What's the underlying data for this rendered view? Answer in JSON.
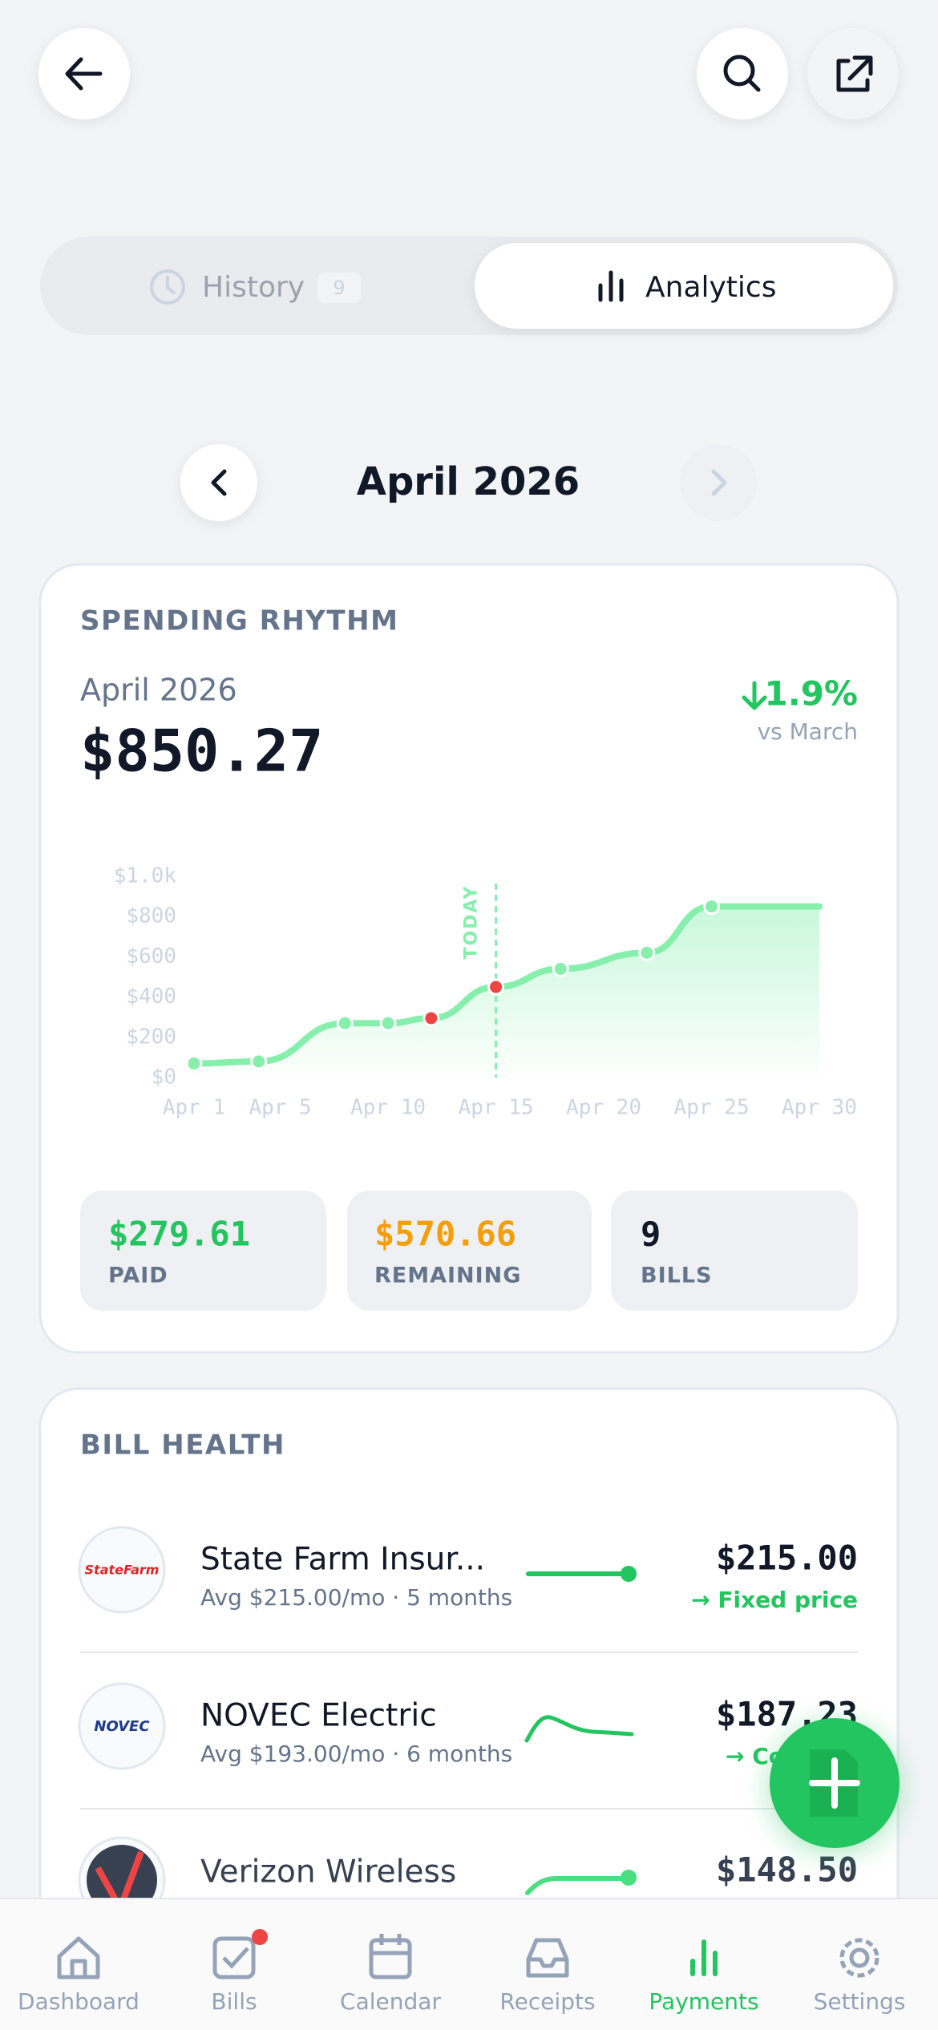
{
  "tabs": [
    {
      "label": "History",
      "badge": 9
    },
    {
      "label": "Analytics"
    }
  ],
  "month_nav": {
    "label": "April 2026"
  },
  "spending_card": {
    "title": "SPENDING RHYTHM",
    "period": "April 2026",
    "total": "$850.27",
    "change": "1.9%",
    "change_note": "vs March",
    "chart": {
      "type": "line",
      "color": "#86efac",
      "x": [
        1,
        4,
        8,
        10,
        12,
        15,
        18,
        22,
        25
      ],
      "values": [
        70,
        80,
        270,
        270,
        295,
        450,
        540,
        620,
        850
      ],
      "point_colors": [
        "#86efac",
        "#86efac",
        "#86efac",
        "#86efac",
        "#ef4444",
        "#ef4444",
        "#86efac",
        "#86efac",
        "#86efac"
      ],
      "xlim": [
        1,
        30
      ],
      "ylim": [
        0,
        1000
      ],
      "xticks": [
        {
          "value": 1,
          "label": "Apr 1"
        },
        {
          "value": 5,
          "label": "Apr 5"
        },
        {
          "value": 10,
          "label": "Apr 10"
        },
        {
          "value": 15,
          "label": "Apr 15"
        },
        {
          "value": 20,
          "label": "Apr 20"
        },
        {
          "value": 25,
          "label": "Apr 25"
        },
        {
          "value": 30,
          "label": "Apr 30"
        }
      ],
      "yticks": [
        {
          "value": 0,
          "label": "$0"
        },
        {
          "value": 200,
          "label": "$200"
        },
        {
          "value": 400,
          "label": "$400"
        },
        {
          "value": 600,
          "label": "$600"
        },
        {
          "value": 800,
          "label": "$800"
        },
        {
          "value": 1000,
          "label": "$1.0k"
        }
      ],
      "today": {
        "value": 15,
        "label": "TODAY"
      }
    },
    "stats": [
      {
        "value": "$279.61",
        "label": "PAID"
      },
      {
        "value": "$570.66",
        "label": "REMAINING"
      },
      {
        "value": 9,
        "label": "BILLS"
      }
    ]
  },
  "bill_health": {
    "title": "BILL HEALTH",
    "bills": [
      {
        "logo": "StateFarm",
        "name": "State Farm Insur...",
        "sub": "Avg $215.00/mo · 5 months",
        "amount": "$215.00",
        "status": "→ Fixed price"
      },
      {
        "logo": "NOVEC",
        "name": "NOVEC Electric",
        "sub": "Avg $193.00/mo · 6 months",
        "amount": "$187.23",
        "status": "→ Consistent"
      },
      {
        "name": "Verizon Wireless",
        "amount": "$148.50"
      }
    ]
  },
  "nav": [
    "Dashboard",
    "Bills",
    "Calendar",
    "Receipts",
    "Payments",
    "Settings"
  ]
}
